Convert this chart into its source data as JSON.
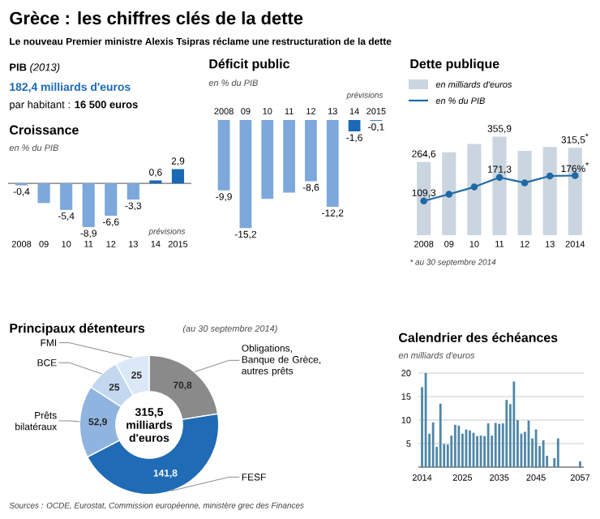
{
  "chart_data": [
    {
      "type": "other",
      "title": "Grèce : les chiffres clés de la dette",
      "subtitle": "Le nouveau Premier ministre Alexis Tsipras réclame une restructuration de la dette",
      "annotations": [
        "**PIB** *(2013)*",
        "182,4 milliards d'euros",
        "par habitant : **16 500 euros**",
        "Sources : OCDE, Eurostat, Commission européenne, ministère grec des Finances"
      ]
    },
    {
      "type": "bar",
      "title": "Croissance",
      "subtitle": "en % du PIB",
      "categories": [
        "2008",
        "09",
        "10",
        "11",
        "12",
        "13",
        "14",
        "2015"
      ],
      "values": [
        -0.4,
        -4.0,
        -5.4,
        -8.9,
        -6.6,
        -3.3,
        0.6,
        2.9
      ],
      "colors": [
        "#7ca8dc",
        "#7ca8dc",
        "#7ca8dc",
        "#7ca8dc",
        "#7ca8dc",
        "#7ca8dc",
        "#1a69b5",
        "#1a69b5"
      ],
      "value_labels": [
        "-0,4",
        null,
        "-5,4",
        "-8,9",
        "-6,6",
        "-3,3",
        "0,6",
        "2,9"
      ],
      "annotations": [
        "prévisions"
      ]
    },
    {
      "type": "bar",
      "title": "Déficit public",
      "subtitle": "en % du PIB",
      "categories": [
        "2008",
        "09",
        "10",
        "11",
        "12",
        "13",
        "14",
        "2015"
      ],
      "values": [
        -9.9,
        -15.2,
        -11.1,
        -10.2,
        -8.6,
        -12.2,
        -1.6,
        -0.1
      ],
      "colors": [
        "#7ca8dc",
        "#7ca8dc",
        "#7ca8dc",
        "#7ca8dc",
        "#7ca8dc",
        "#7ca8dc",
        "#1a69b5",
        "#1a69b5"
      ],
      "value_labels": [
        "-9,9",
        "-15,2",
        null,
        null,
        "-8,6",
        "-12,2",
        "-1,6",
        "-0,1"
      ],
      "annotations": [
        "prévisions"
      ]
    },
    {
      "type": "bar",
      "title": "Dette publique",
      "categories": [
        "2008",
        "09",
        "10",
        "11",
        "12",
        "13",
        "2014"
      ],
      "legend": "top left",
      "marker": "circle",
      "series": [
        {
          "name": "en milliards d'euros",
          "color": "#cbd5df",
          "values": [
            264.6,
            300,
            330,
            355.9,
            305,
            319,
            315.5
          ],
          "value_labels": [
            "264,6",
            null,
            null,
            "355,9",
            null,
            null,
            "315,5$^{*}$"
          ]
        },
        {
          "name": "en % du PIB",
          "type": "line",
          "axis": "y2",
          "color": "#1d6aa5",
          "values": [
            109.3,
            127,
            146,
            171.3,
            157,
            175,
            176
          ],
          "value_labels": [
            "109,3",
            null,
            null,
            "171,3",
            null,
            null,
            "176%$^{*}$"
          ]
        }
      ],
      "annotations": [
        "* au 30 septembre 2014"
      ]
    },
    {
      "type": "donut",
      "title": "Principaux détenteurs",
      "subtitle": "(au 30 septembre 2014)",
      "categories": [
        "Obligations, Banque de Grèce, autres prêts",
        "FESF",
        "Prêts bilatéraux",
        "BCE",
        "FMI"
      ],
      "values": [
        70.8,
        141.8,
        52.9,
        25,
        25
      ],
      "colors": [
        "#8a8a8a",
        "#1f6bb5",
        "#8fb4df",
        "#c3d7ef",
        "#dbe8f7"
      ],
      "value_labels": [
        "70,8",
        "141,8",
        "52,9",
        "25",
        "25"
      ],
      "annotations": [
        "315,5 milliards d'euros"
      ]
    },
    {
      "type": "bar",
      "title": "Calendrier des échéances",
      "subtitle": "en milliards d'euros",
      "x": [
        2014,
        2015,
        2016,
        2017,
        2018,
        2019,
        2020,
        2021,
        2022,
        2023,
        2024,
        2025,
        2026,
        2027,
        2028,
        2029,
        2030,
        2031,
        2032,
        2033,
        2034,
        2035,
        2036,
        2037,
        2038,
        2039,
        2040,
        2041,
        2042,
        2043,
        2044,
        2045,
        2046,
        2047,
        2048,
        2049,
        2050,
        2051,
        2057
      ],
      "values": [
        17,
        20,
        7.1,
        9.5,
        4.3,
        13.5,
        4.9,
        4.8,
        6.7,
        9,
        8.8,
        7.1,
        8,
        7.8,
        7.3,
        6.6,
        6.7,
        6.6,
        9.3,
        6.7,
        9.4,
        9.2,
        9.3,
        14.3,
        13.4,
        18.2,
        10,
        7.1,
        7.5,
        9.9,
        6.1,
        8,
        4.5,
        5.7,
        2.4,
        null,
        1.9,
        6.1,
        1.2
      ],
      "color": "#4f87a8",
      "xlim": [
        2013,
        2058
      ],
      "ylim": [
        0,
        20
      ],
      "xticks": [
        2014,
        2025,
        2035,
        2045,
        2057
      ],
      "yticks": [
        5,
        10,
        15,
        20
      ],
      "grid": "y"
    }
  ]
}
